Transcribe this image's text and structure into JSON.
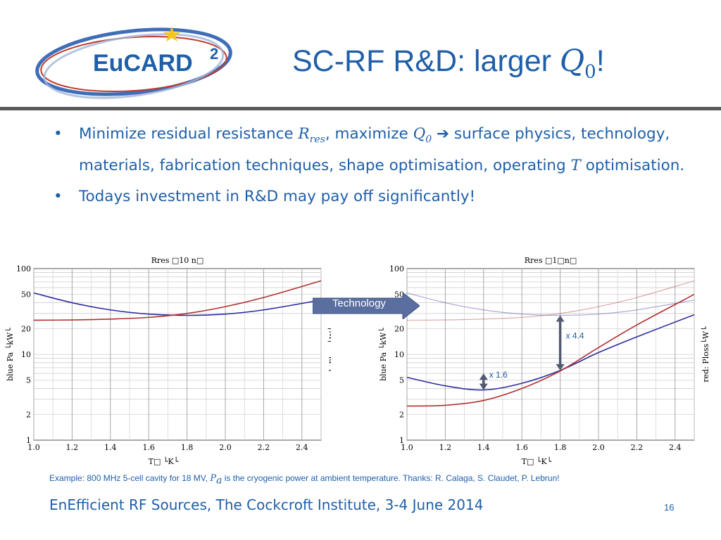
{
  "logo": {
    "text": "EuCARD",
    "superscript": "2",
    "star_color": "#f5c518",
    "swoosh_colors": [
      "#1f5fa8",
      "#c0392b"
    ]
  },
  "title": {
    "prefix": "SC-RF R&D: larger ",
    "symbol": "Q",
    "subscript": "0",
    "suffix": "!"
  },
  "bullets": [
    {
      "t1": "Minimize residual resistance ",
      "sym1": "R",
      "sub1": "res",
      "t2": ", maximize ",
      "sym2": "Q",
      "sub2": "0",
      "t3": " ➔ surface physics, technology, materials, fabrication techniques, shape optimisation, operating ",
      "sym3": "T",
      "t4": " optimisation."
    },
    {
      "text": "Todays investment in R&D may pay off significantly!"
    }
  ],
  "tech_arrow": {
    "label": "Technology",
    "color": "#5a6fa0"
  },
  "caption": {
    "pre": "Example: 800 MHz 5-cell cavity for 18 MV, ",
    "sym": "P",
    "sub": "a",
    "post": " is the cryogenic power at ambient temperature. Thanks: R. Calaga, S. Claudet, P. Lebrun!"
  },
  "footer": "EnEfficient RF Sources, The Cockcroft Institute, 3-4 June 2014",
  "page_number": "16",
  "colors": {
    "blue_curve": "#2c2ca0",
    "red_curve": "#b03030",
    "text": "#1f5fa8"
  },
  "chart_data": [
    {
      "type": "line",
      "title": "Rres □10 n□",
      "xlabel": "T□ └K└",
      "ylabel_left": "blue Pa └kW└",
      "ylabel_right": "red: Ploss└W└",
      "xlim": [
        1.0,
        2.5
      ],
      "ylim": [
        1,
        100
      ],
      "yscale": "log",
      "xticks": [
        "1.0",
        "1.2",
        "1.4",
        "1.6",
        "1.8",
        "2.0",
        "2.2",
        "2.4"
      ],
      "yticks": [
        {
          "v": 1,
          "l": "1"
        },
        {
          "v": 2,
          "l": "2"
        },
        {
          "v": 5,
          "l": "5"
        },
        {
          "v": 10,
          "l": "10"
        },
        {
          "v": 20,
          "l": "20"
        },
        {
          "v": 50,
          "l": "50"
        },
        {
          "v": 100,
          "l": "100"
        }
      ],
      "series": [
        {
          "color": "#2c2ca0",
          "x": [
            1.0,
            1.2,
            1.4,
            1.6,
            1.8,
            2.0,
            2.2,
            2.5
          ],
          "y": [
            52,
            40,
            33,
            29.5,
            28.5,
            29.5,
            33,
            43
          ]
        },
        {
          "color": "#b03030",
          "x": [
            1.0,
            1.2,
            1.4,
            1.6,
            1.8,
            2.0,
            2.2,
            2.5
          ],
          "y": [
            25,
            25.2,
            25.8,
            27,
            30,
            36,
            46,
            72
          ]
        }
      ]
    },
    {
      "type": "line",
      "title": "Rres □1□n□",
      "xlabel": "T□ └K└",
      "ylabel_left": "blue Pa └kW└",
      "ylabel_right": "red: Ploss└W└",
      "xlim": [
        1.0,
        2.5
      ],
      "ylim": [
        1,
        100
      ],
      "yscale": "log",
      "xticks": [
        "1.0",
        "1.2",
        "1.4",
        "1.6",
        "1.8",
        "2.0",
        "2.2",
        "2.4"
      ],
      "yticks": [
        {
          "v": 1,
          "l": "1"
        },
        {
          "v": 2,
          "l": "2"
        },
        {
          "v": 5,
          "l": "5"
        },
        {
          "v": 10,
          "l": "10"
        },
        {
          "v": 20,
          "l": "20"
        },
        {
          "v": 50,
          "l": "50"
        },
        {
          "v": 100,
          "l": "100"
        }
      ],
      "series": [
        {
          "color": "#2c2ca0",
          "faded": true,
          "x": [
            1.0,
            1.2,
            1.4,
            1.6,
            1.8,
            2.0,
            2.2,
            2.5
          ],
          "y": [
            52,
            40,
            33,
            29.5,
            28.5,
            29.5,
            33,
            43
          ]
        },
        {
          "color": "#b03030",
          "faded": true,
          "x": [
            1.0,
            1.2,
            1.4,
            1.6,
            1.8,
            2.0,
            2.2,
            2.5
          ],
          "y": [
            25,
            25.2,
            25.8,
            27,
            30,
            36,
            46,
            72
          ]
        },
        {
          "color": "#2c2ca0",
          "x": [
            1.0,
            1.2,
            1.4,
            1.6,
            1.8,
            2.0,
            2.2,
            2.5
          ],
          "y": [
            5.4,
            4.3,
            3.85,
            4.6,
            6.5,
            10.5,
            16,
            29
          ]
        },
        {
          "color": "#b03030",
          "x": [
            1.0,
            1.2,
            1.4,
            1.6,
            1.8,
            2.0,
            2.2,
            2.5
          ],
          "y": [
            2.5,
            2.55,
            2.9,
            4.0,
            6.4,
            12,
            22,
            50
          ]
        }
      ],
      "annotations": [
        {
          "label": "x 4.4",
          "x": 1.8,
          "y_from": 6.5,
          "y_to": 28.5
        },
        {
          "label": "x 1.6",
          "x": 1.4,
          "y_from": 3.85,
          "y_to": 6.0
        }
      ]
    }
  ]
}
